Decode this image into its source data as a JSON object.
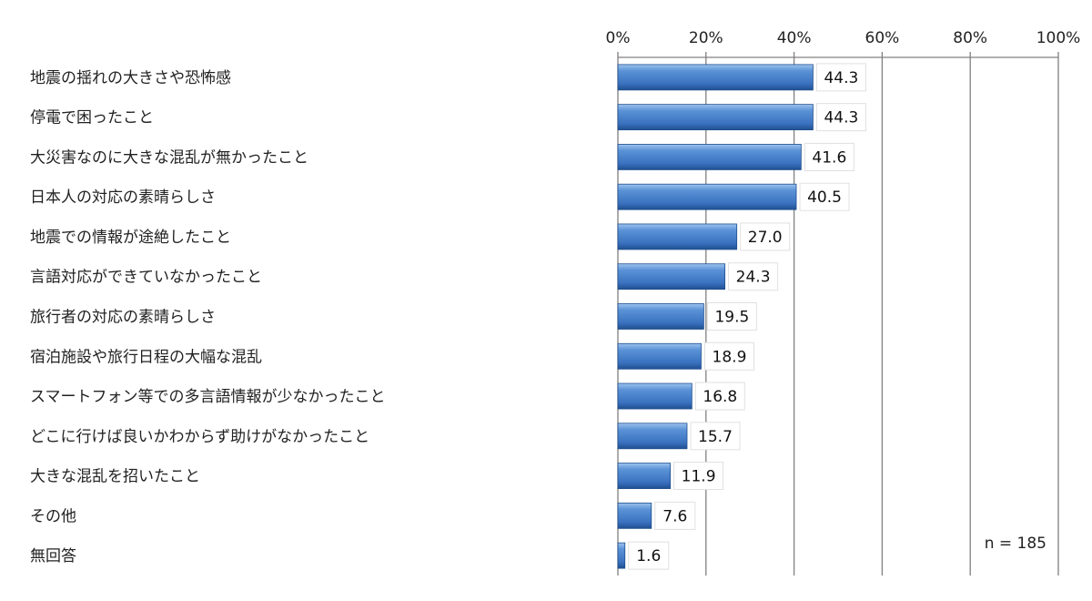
{
  "chart_data": {
    "type": "bar",
    "orientation": "horizontal",
    "categories": [
      "地震の揺れの大きさや恐怖感",
      "停電で困ったこと",
      "大災害なのに大きな混乱が無かったこと",
      "日本人の対応の素晴らしさ",
      "地震での情報が途絶したこと",
      "言語対応ができていなかったこと",
      "旅行者の対応の素晴らしさ",
      "宿泊施設や旅行日程の大幅な混乱",
      "スマートフォン等での多言語情報が少なかったこと",
      "どこに行けば良いかわからず助けがなかったこと",
      "大きな混乱を招いたこと",
      "その他",
      "無回答"
    ],
    "values": [
      44.3,
      44.3,
      41.6,
      40.5,
      27.0,
      24.3,
      19.5,
      18.9,
      16.8,
      15.7,
      11.9,
      7.6,
      1.6
    ],
    "value_labels": [
      "44.3",
      "44.3",
      "41.6",
      "40.5",
      "27.0",
      "24.3",
      "19.5",
      "18.9",
      "16.8",
      "15.7",
      "11.9",
      "7.6",
      "1.6"
    ],
    "xlim": [
      0,
      100
    ],
    "x_ticks": [
      "0%",
      "20%",
      "40%",
      "60%",
      "80%",
      "100%"
    ],
    "x_tick_values": [
      0,
      20,
      40,
      60,
      80,
      100
    ],
    "annotation": "n = 185",
    "grid": true,
    "bar_color": "#3f78c4"
  }
}
